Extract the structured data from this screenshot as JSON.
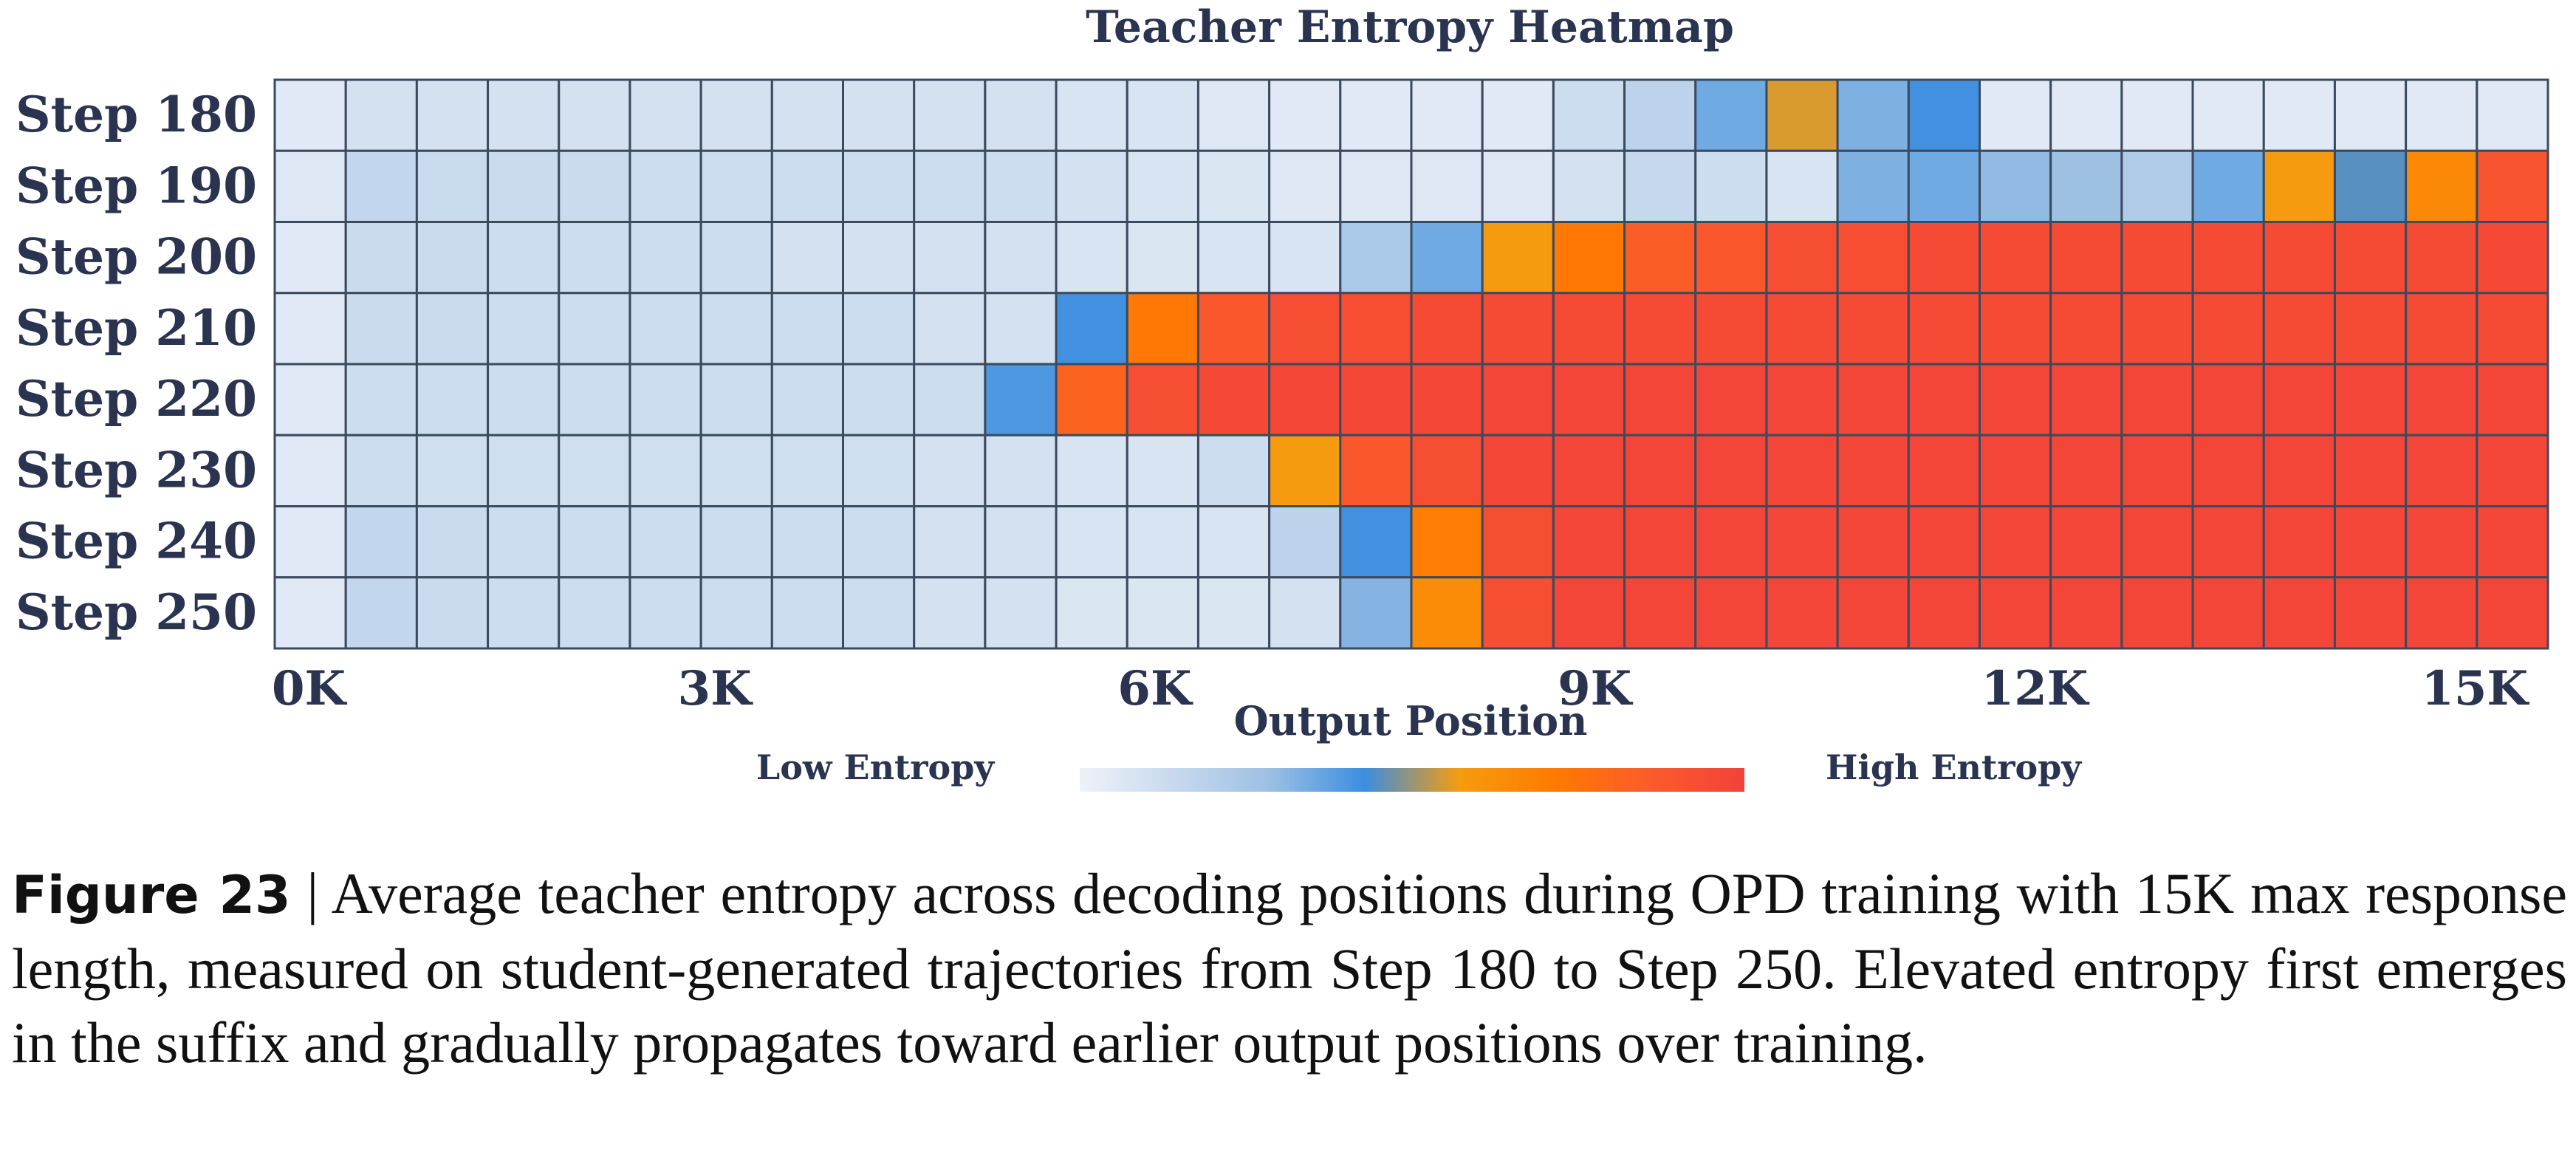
{
  "chart_data": {
    "type": "heatmap",
    "title": "Teacher Entropy Heatmap",
    "xlabel": "Output Position",
    "ylabel": "",
    "rows": [
      "Step 180",
      "Step 190",
      "Step 200",
      "Step 210",
      "Step 220",
      "Step 230",
      "Step 240",
      "Step 250"
    ],
    "x_ticks": [
      "0K",
      "3K",
      "6K",
      "9K",
      "12K",
      "15K"
    ],
    "x_tick_values": [
      0,
      3000,
      6000,
      9000,
      12000,
      15000
    ],
    "xlim": [
      0,
      15500
    ],
    "n_bins": 32,
    "bin_width": 500,
    "colorbar": {
      "low_label": "Low Entropy",
      "high_label": "High Entropy",
      "stops": [
        "#eef2f8",
        "#c7d9ee",
        "#9cc0e3",
        "#3b8ee0",
        "#f59c10",
        "#ff7a00",
        "#fb5b2a",
        "#f2423a"
      ]
    },
    "values_note_scale": [
      0,
      1
    ],
    "values": [
      [
        0.05,
        0.1,
        0.1,
        0.1,
        0.1,
        0.1,
        0.1,
        0.1,
        0.1,
        0.1,
        0.1,
        0.08,
        0.08,
        0.06,
        0.05,
        0.05,
        0.05,
        0.05,
        0.12,
        0.18,
        0.35,
        0.55,
        0.33,
        0.42,
        0.05,
        0.05,
        0.05,
        0.05,
        0.05,
        0.05,
        0.05,
        0.05
      ],
      [
        0.06,
        0.16,
        0.14,
        0.13,
        0.13,
        0.12,
        0.12,
        0.12,
        0.12,
        0.12,
        0.12,
        0.1,
        0.08,
        0.07,
        0.06,
        0.06,
        0.06,
        0.06,
        0.1,
        0.15,
        0.12,
        0.08,
        0.33,
        0.35,
        0.3,
        0.28,
        0.22,
        0.35,
        0.58,
        0.45,
        0.65,
        0.9
      ],
      [
        0.05,
        0.13,
        0.13,
        0.12,
        0.12,
        0.12,
        0.12,
        0.1,
        0.1,
        0.1,
        0.1,
        0.08,
        0.07,
        0.08,
        0.08,
        0.24,
        0.35,
        0.58,
        0.73,
        0.85,
        0.88,
        0.93,
        0.94,
        0.95,
        0.95,
        0.95,
        0.95,
        0.95,
        0.95,
        0.95,
        0.95,
        0.96
      ],
      [
        0.05,
        0.13,
        0.13,
        0.12,
        0.12,
        0.12,
        0.12,
        0.12,
        0.12,
        0.1,
        0.1,
        0.42,
        0.73,
        0.88,
        0.93,
        0.94,
        0.95,
        0.95,
        0.95,
        0.95,
        0.95,
        0.95,
        0.95,
        0.95,
        0.95,
        0.95,
        0.95,
        0.95,
        0.95,
        0.95,
        0.95,
        0.95
      ],
      [
        0.05,
        0.12,
        0.12,
        0.12,
        0.12,
        0.12,
        0.12,
        0.12,
        0.12,
        0.12,
        0.4,
        0.82,
        0.93,
        0.96,
        0.97,
        0.97,
        0.97,
        0.98,
        0.98,
        0.98,
        0.98,
        0.98,
        0.98,
        0.98,
        0.98,
        0.98,
        0.98,
        0.98,
        0.98,
        0.98,
        0.98,
        0.98
      ],
      [
        0.05,
        0.12,
        0.11,
        0.11,
        0.11,
        0.11,
        0.11,
        0.11,
        0.11,
        0.1,
        0.1,
        0.08,
        0.08,
        0.12,
        0.58,
        0.88,
        0.93,
        0.97,
        0.98,
        0.98,
        0.98,
        0.98,
        0.98,
        0.98,
        0.98,
        0.98,
        0.98,
        0.98,
        0.98,
        0.98,
        0.98,
        0.98
      ],
      [
        0.05,
        0.16,
        0.13,
        0.12,
        0.12,
        0.12,
        0.12,
        0.12,
        0.12,
        0.1,
        0.1,
        0.08,
        0.08,
        0.08,
        0.18,
        0.42,
        0.7,
        0.93,
        0.98,
        0.98,
        0.98,
        0.98,
        0.98,
        0.98,
        0.98,
        0.98,
        0.98,
        0.98,
        0.98,
        0.98,
        0.98,
        0.98
      ],
      [
        0.05,
        0.16,
        0.13,
        0.12,
        0.12,
        0.12,
        0.12,
        0.12,
        0.12,
        0.1,
        0.1,
        0.07,
        0.07,
        0.07,
        0.1,
        0.32,
        0.64,
        0.93,
        0.98,
        0.98,
        0.98,
        0.98,
        0.98,
        0.98,
        0.98,
        0.98,
        0.98,
        0.98,
        0.98,
        0.98,
        0.98,
        0.98
      ]
    ]
  },
  "caption": {
    "label": "Figure 23",
    "separator": " | ",
    "text": "Average teacher entropy across decoding positions during OPD training with 15K max response length, measured on student-generated trajectories from Step 180 to Step 250. Elevated entropy first emerges in the suffix and gradually propagates toward earlier output positions over training."
  }
}
